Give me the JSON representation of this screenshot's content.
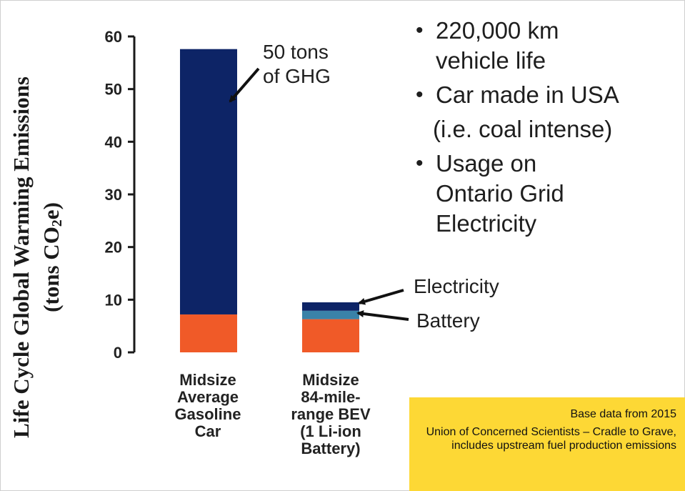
{
  "colors": {
    "ghg": "#0d2466",
    "battery": "#3a82a8",
    "manufacturing": "#f05a28",
    "axis": "#1a1a1a",
    "note_bg": "#fdd835"
  },
  "chart_data": {
    "type": "bar",
    "stacked": true,
    "categories": [
      "Midsize Average Gasoline Car",
      "Midsize 84-mile-range BEV (1 Li-ion Battery)"
    ],
    "category_lines": [
      [
        "Midsize",
        "Average",
        "Gasoline",
        "Car"
      ],
      [
        "Midsize",
        "84-mile-",
        "range BEV",
        "(1 Li-ion",
        "Battery)"
      ]
    ],
    "series": [
      {
        "values": [
          7.2,
          6.3
        ],
        "color": "#f05a28"
      },
      {
        "values": [
          0,
          1.6
        ],
        "color": "#3a82a8"
      },
      {
        "values": [
          50.4,
          1.6
        ],
        "color": "#0d2466"
      }
    ],
    "ylabel_main": "Life Cycle Global Warming Emissions",
    "ylabel_unit_pre": "(tons CO",
    "ylabel_unit_sub": "2",
    "ylabel_unit_post": "e)",
    "ylim": [
      0,
      60
    ],
    "yticks": [
      "0",
      "10",
      "20",
      "30",
      "40",
      "50",
      "60"
    ],
    "grid": false,
    "annotations": {
      "gasoline": [
        "50 tons",
        "of GHG"
      ],
      "electricity": "Electricity",
      "battery": "Battery"
    }
  },
  "bullets": [
    {
      "lines": [
        "220,000 km",
        "vehicle life"
      ]
    },
    {
      "lines": [
        "Car made in USA"
      ]
    },
    {
      "lines": [
        "(i.e. coal intense)"
      ],
      "indent": true
    },
    {
      "lines": [
        "Usage on",
        "Ontario Grid",
        "Electricity"
      ]
    }
  ],
  "source_note": {
    "line1": "Base data from 2015",
    "line2": "Union of Concerned Scientists – Cradle to Grave, includes upstream fuel production emissions"
  }
}
